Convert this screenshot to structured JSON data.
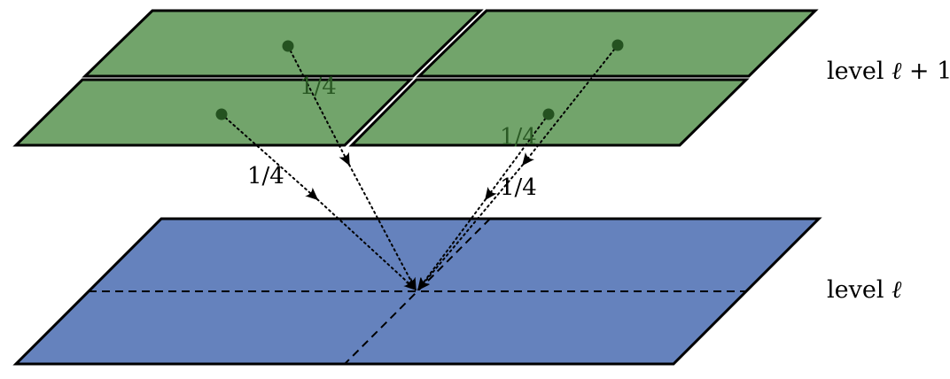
{
  "levels": {
    "fine": {
      "word": "level",
      "symbol": "ℓ",
      "suffix": " + 1"
    },
    "coarse": {
      "word": "level",
      "symbol": "ℓ",
      "suffix": ""
    }
  },
  "weights": [
    "1/4",
    "1/4",
    "1/4",
    "1/4"
  ],
  "colors": {
    "fine_fill": "#72a46b",
    "coarse_fill": "#6582bd",
    "point": "#245220",
    "weight_dark": "#2b5a25",
    "weight_black": "#000000"
  }
}
